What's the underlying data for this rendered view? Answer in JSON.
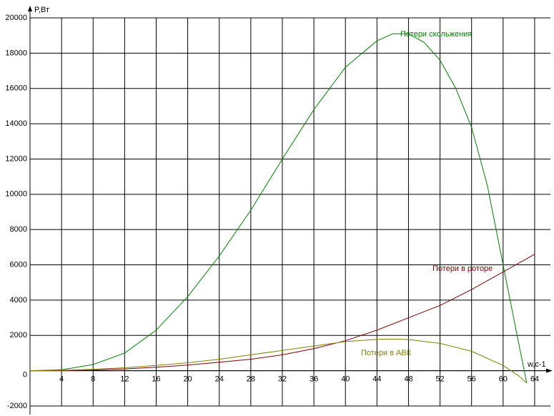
{
  "chart_data": {
    "type": "line",
    "xlabel": "w,c-1",
    "ylabel": "P,Вт",
    "xlim": [
      0,
      66
    ],
    "ylim": [
      -2000,
      20000
    ],
    "xticks": [
      0,
      4,
      8,
      12,
      16,
      20,
      24,
      28,
      32,
      36,
      40,
      44,
      48,
      52,
      56,
      60,
      64
    ],
    "yticks": [
      -2000,
      0,
      2000,
      4000,
      6000,
      8000,
      10000,
      12000,
      14000,
      16000,
      18000,
      20000
    ],
    "grid": true,
    "series": [
      {
        "name": "Потери скольжения",
        "color": "#008000",
        "x": [
          0,
          4,
          8,
          12,
          16,
          20,
          24,
          28,
          32,
          36,
          40,
          44,
          46,
          48,
          50,
          52,
          54,
          56,
          58,
          60,
          62,
          63
        ],
        "values": [
          0,
          50,
          350,
          1000,
          2300,
          4200,
          6500,
          9100,
          12000,
          14800,
          17200,
          18700,
          19100,
          19100,
          18600,
          17600,
          16000,
          13800,
          10500,
          6000,
          1500,
          -700
        ]
      },
      {
        "name": "Потери в роторе",
        "color": "#800000",
        "x": [
          0,
          4,
          8,
          12,
          16,
          20,
          24,
          28,
          32,
          36,
          40,
          44,
          48,
          52,
          56,
          60,
          64
        ],
        "values": [
          0,
          5,
          40,
          100,
          200,
          320,
          480,
          650,
          900,
          1250,
          1700,
          2300,
          3000,
          3700,
          4600,
          5600,
          6600
        ]
      },
      {
        "name": "Потери в АВК",
        "color": "#808000",
        "x": [
          0,
          4,
          8,
          12,
          16,
          20,
          24,
          28,
          32,
          36,
          40,
          44,
          46,
          48,
          52,
          56,
          60,
          62,
          63
        ],
        "values": [
          0,
          20,
          80,
          170,
          300,
          450,
          650,
          900,
          1150,
          1400,
          1650,
          1780,
          1800,
          1770,
          1550,
          1100,
          300,
          -300,
          -700
        ]
      }
    ]
  }
}
